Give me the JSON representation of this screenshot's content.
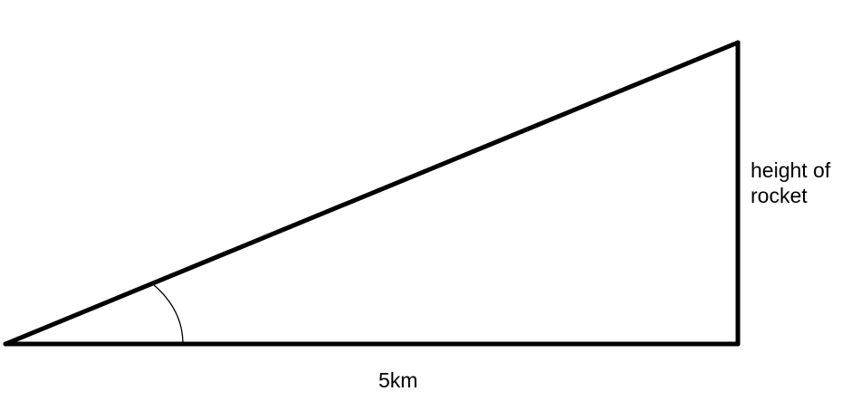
{
  "diagram": {
    "base_label": "5km",
    "height_label_line1": "height of",
    "height_label_line2": "rocket",
    "stroke_color": "#000000",
    "background_color": "#ffffff"
  }
}
